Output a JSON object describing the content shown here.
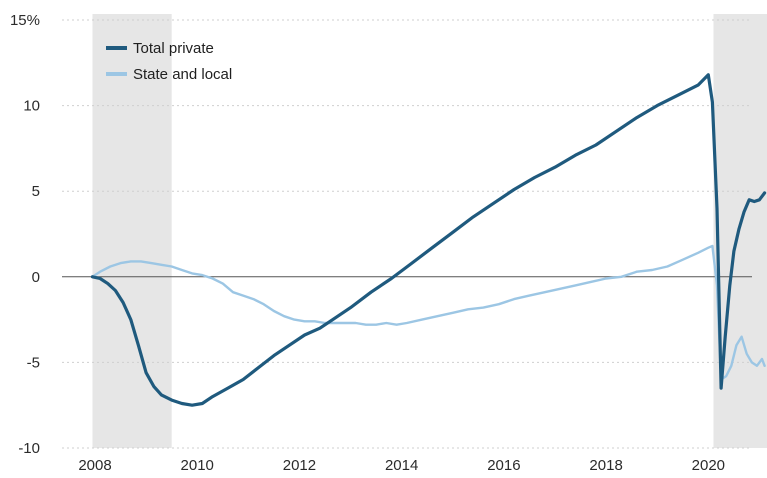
{
  "chart_data": {
    "type": "line",
    "title": "",
    "xlabel": "",
    "ylabel": "",
    "xlim": [
      2008.0,
      2021.5
    ],
    "ylim": [
      -10,
      15
    ],
    "x_ticks": [
      {
        "value": 2008,
        "label": "2008"
      },
      {
        "value": 2010,
        "label": "2010"
      },
      {
        "value": 2012,
        "label": "2012"
      },
      {
        "value": 2014,
        "label": "2014"
      },
      {
        "value": 2016,
        "label": "2016"
      },
      {
        "value": 2018,
        "label": "2018"
      },
      {
        "value": 2020,
        "label": "2020"
      }
    ],
    "y_ticks": [
      {
        "value": 15,
        "label": "15%"
      },
      {
        "value": 10,
        "label": "10"
      },
      {
        "value": 5,
        "label": "5"
      },
      {
        "value": 0,
        "label": "0"
      },
      {
        "value": -5,
        "label": "-5"
      },
      {
        "value": -10,
        "label": "-10"
      }
    ],
    "grid": "horizontal dotted",
    "zero_line": true,
    "recessions": [
      [
        2007.95,
        2009.5
      ],
      [
        2020.1,
        2021.5
      ]
    ],
    "legend_position": "top-left",
    "series": [
      {
        "name": "Total private",
        "color": "#1f5a7e",
        "x": [
          2007.95,
          2008.1,
          2008.25,
          2008.4,
          2008.55,
          2008.7,
          2008.85,
          2009.0,
          2009.15,
          2009.3,
          2009.5,
          2009.7,
          2009.9,
          2010.1,
          2010.3,
          2010.6,
          2010.9,
          2011.2,
          2011.5,
          2011.8,
          2012.1,
          2012.4,
          2012.7,
          2013.0,
          2013.4,
          2013.8,
          2014.2,
          2014.6,
          2015.0,
          2015.4,
          2015.8,
          2016.2,
          2016.6,
          2017.0,
          2017.4,
          2017.8,
          2018.2,
          2018.6,
          2019.0,
          2019.4,
          2019.8,
          2020.0,
          2020.08,
          2020.17,
          2020.25,
          2020.33,
          2020.42,
          2020.5,
          2020.6,
          2020.7,
          2020.8,
          2020.9,
          2021.0,
          2021.1
        ],
        "y": [
          0.0,
          -0.1,
          -0.4,
          -0.8,
          -1.5,
          -2.5,
          -4.0,
          -5.6,
          -6.4,
          -6.9,
          -7.2,
          -7.4,
          -7.5,
          -7.4,
          -7.0,
          -6.5,
          -6.0,
          -5.3,
          -4.6,
          -4.0,
          -3.4,
          -3.0,
          -2.4,
          -1.8,
          -0.9,
          -0.1,
          0.8,
          1.7,
          2.6,
          3.5,
          4.3,
          5.1,
          5.8,
          6.4,
          7.1,
          7.7,
          8.5,
          9.3,
          10.0,
          10.6,
          11.2,
          11.8,
          10.2,
          4.0,
          -6.5,
          -3.5,
          -0.5,
          1.5,
          2.8,
          3.8,
          4.5,
          4.4,
          4.5,
          4.9
        ]
      },
      {
        "name": "State and local",
        "color": "#9cc6e4",
        "x": [
          2007.95,
          2008.1,
          2008.3,
          2008.5,
          2008.7,
          2008.9,
          2009.1,
          2009.3,
          2009.5,
          2009.7,
          2009.9,
          2010.1,
          2010.3,
          2010.5,
          2010.7,
          2010.9,
          2011.1,
          2011.3,
          2011.5,
          2011.7,
          2011.9,
          2012.1,
          2012.3,
          2012.5,
          2012.7,
          2012.9,
          2013.1,
          2013.3,
          2013.5,
          2013.7,
          2013.9,
          2014.1,
          2014.4,
          2014.7,
          2015.0,
          2015.3,
          2015.6,
          2015.9,
          2016.2,
          2016.5,
          2016.8,
          2017.1,
          2017.4,
          2017.7,
          2018.0,
          2018.3,
          2018.6,
          2018.9,
          2019.2,
          2019.5,
          2019.8,
          2020.0,
          2020.08,
          2020.17,
          2020.25,
          2020.35,
          2020.45,
          2020.55,
          2020.65,
          2020.75,
          2020.85,
          2020.95,
          2021.05,
          2021.1
        ],
        "y": [
          0.0,
          0.3,
          0.6,
          0.8,
          0.9,
          0.9,
          0.8,
          0.7,
          0.6,
          0.4,
          0.2,
          0.1,
          -0.1,
          -0.4,
          -0.9,
          -1.1,
          -1.3,
          -1.6,
          -2.0,
          -2.3,
          -2.5,
          -2.6,
          -2.6,
          -2.7,
          -2.7,
          -2.7,
          -2.7,
          -2.8,
          -2.8,
          -2.7,
          -2.8,
          -2.7,
          -2.5,
          -2.3,
          -2.1,
          -1.9,
          -1.8,
          -1.6,
          -1.3,
          -1.1,
          -0.9,
          -0.7,
          -0.5,
          -0.3,
          -0.1,
          0.0,
          0.3,
          0.4,
          0.6,
          1.0,
          1.4,
          1.7,
          1.8,
          -0.5,
          -6.0,
          -5.8,
          -5.2,
          -4.0,
          -3.5,
          -4.5,
          -5.0,
          -5.2,
          -4.8,
          -5.2
        ]
      }
    ]
  }
}
